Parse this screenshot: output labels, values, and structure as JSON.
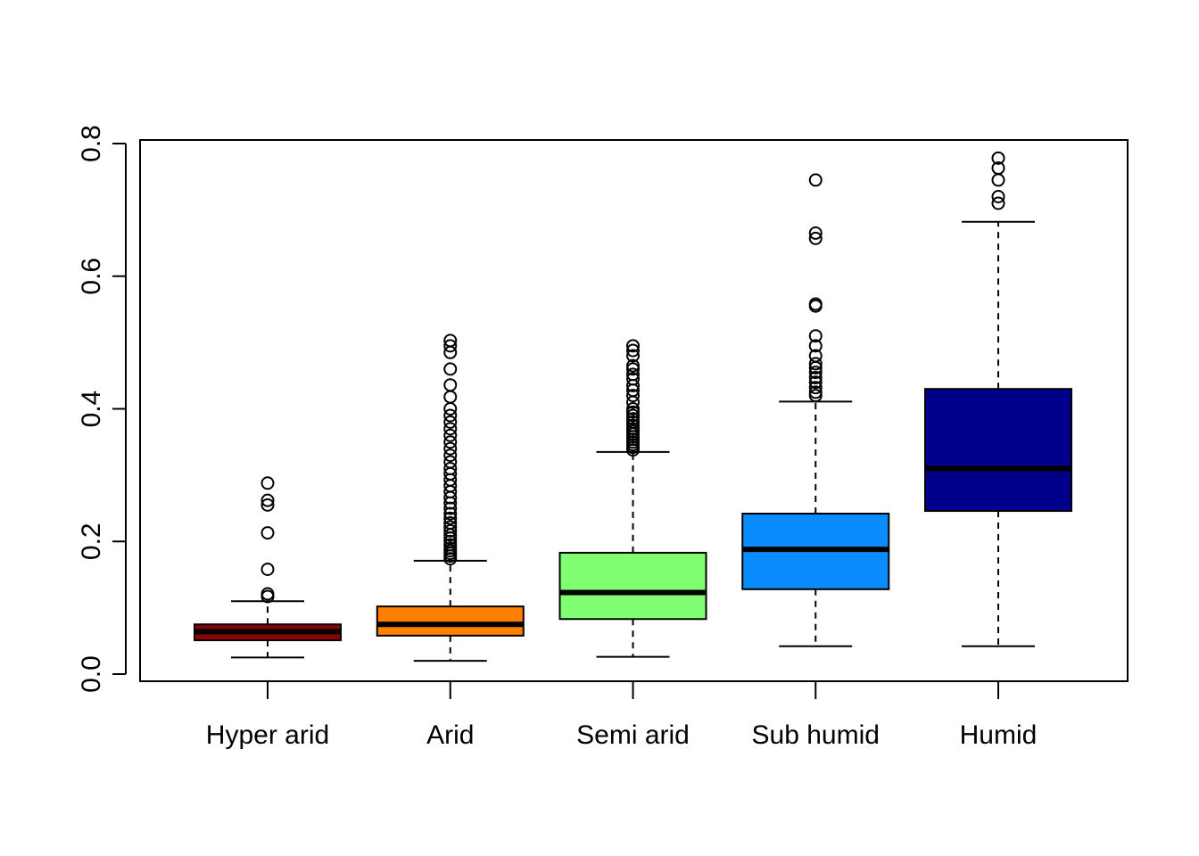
{
  "chart_data": {
    "type": "boxplot",
    "title": "",
    "xlabel": "",
    "ylabel": "",
    "ylim": [
      0.0,
      0.8
    ],
    "yticks": [
      "0.0",
      "0.2",
      "0.4",
      "0.6",
      "0.8"
    ],
    "grid": false,
    "legend": "none",
    "categories": [
      "Hyper arid",
      "Arid",
      "Semi arid",
      "Sub humid",
      "Humid"
    ],
    "series": [
      {
        "color": "#8b0000",
        "min": 0.025,
        "q1": 0.051,
        "median": 0.064,
        "q3": 0.075,
        "max": 0.11,
        "outliers": [
          0.117,
          0.121,
          0.158,
          0.213,
          0.255,
          0.262,
          0.288
        ]
      },
      {
        "color": "#ff8000",
        "min": 0.02,
        "q1": 0.058,
        "median": 0.075,
        "q3": 0.102,
        "max": 0.171,
        "outliers": [
          0.174,
          0.178,
          0.182,
          0.186,
          0.19,
          0.195,
          0.2,
          0.205,
          0.21,
          0.216,
          0.222,
          0.228,
          0.235,
          0.242,
          0.25,
          0.258,
          0.266,
          0.275,
          0.284,
          0.293,
          0.302,
          0.31,
          0.32,
          0.33,
          0.34,
          0.35,
          0.36,
          0.37,
          0.38,
          0.39,
          0.4,
          0.418,
          0.436,
          0.46,
          0.485,
          0.495,
          0.503
        ]
      },
      {
        "color": "#80ff73",
        "min": 0.026,
        "q1": 0.083,
        "median": 0.123,
        "q3": 0.183,
        "max": 0.335,
        "outliers": [
          0.338,
          0.342,
          0.346,
          0.35,
          0.354,
          0.358,
          0.362,
          0.366,
          0.37,
          0.375,
          0.38,
          0.385,
          0.39,
          0.395,
          0.4,
          0.41,
          0.42,
          0.428,
          0.435,
          0.445,
          0.452,
          0.46,
          0.465,
          0.48,
          0.488,
          0.495
        ]
      },
      {
        "color": "#0a8cff",
        "min": 0.042,
        "q1": 0.128,
        "median": 0.188,
        "q3": 0.242,
        "max": 0.411,
        "outliers": [
          0.42,
          0.425,
          0.432,
          0.44,
          0.447,
          0.455,
          0.462,
          0.468,
          0.48,
          0.495,
          0.51,
          0.555,
          0.558,
          0.657,
          0.665,
          0.745
        ]
      },
      {
        "color": "#00008b",
        "min": 0.042,
        "q1": 0.246,
        "median": 0.31,
        "q3": 0.43,
        "max": 0.682,
        "outliers": [
          0.71,
          0.72,
          0.745,
          0.763,
          0.778
        ]
      }
    ]
  }
}
